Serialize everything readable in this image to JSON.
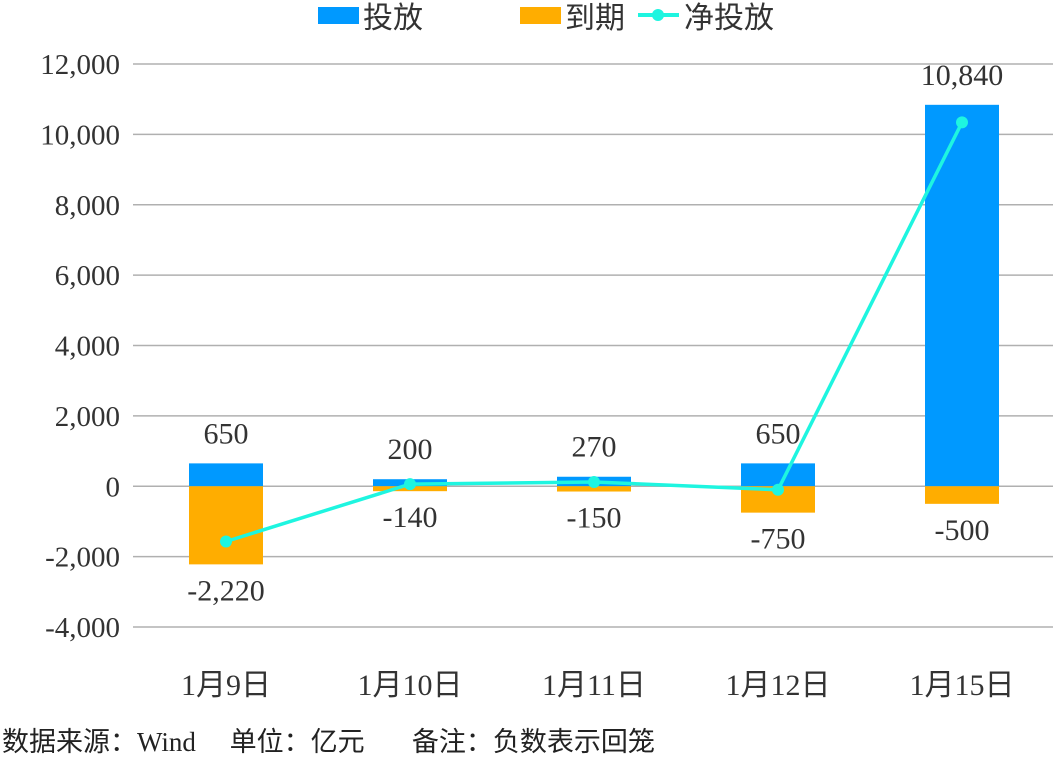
{
  "chart_data": {
    "type": "bar",
    "categories": [
      "1月9日",
      "1月10日",
      "1月11日",
      "1月12日",
      "1月15日"
    ],
    "series": [
      {
        "name": "投放",
        "kind": "bar",
        "color": "#0099FF",
        "values": [
          650,
          200,
          270,
          650,
          10840
        ],
        "labels": [
          "650",
          "200",
          "270",
          "650",
          "10,840"
        ]
      },
      {
        "name": "到期",
        "kind": "bar",
        "color": "#FFAD00",
        "values": [
          -2220,
          -140,
          -150,
          -750,
          -500
        ],
        "labels": [
          "-2,220",
          "-140",
          "-150",
          "-750",
          "-500"
        ]
      },
      {
        "name": "净投放",
        "kind": "line",
        "color": "#1EF5E0",
        "values": [
          -1570,
          60,
          120,
          -100,
          10340
        ]
      }
    ],
    "stacked": true,
    "ylim": [
      -4000,
      12000
    ],
    "yticks": [
      -4000,
      -2000,
      0,
      2000,
      4000,
      6000,
      8000,
      10000,
      12000
    ],
    "ytick_labels": [
      "-4,000",
      "-2,000",
      "0",
      "2,000",
      "4,000",
      "6,000",
      "8,000",
      "10,000",
      "12,000"
    ],
    "grid": true,
    "legend_position": "top"
  },
  "footnote": "数据来源：Wind     单位：亿元       备注：负数表示回笼"
}
